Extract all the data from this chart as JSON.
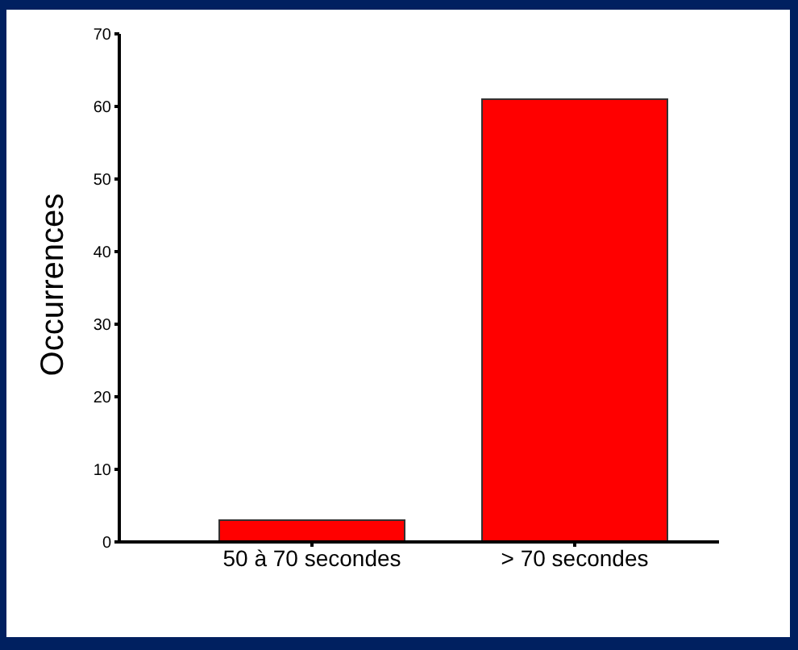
{
  "chart_data": {
    "type": "bar",
    "ylabel": "Occurrences",
    "categories": [
      "50 à 70 secondes",
      "> 70 secondes"
    ],
    "values": [
      3,
      61
    ],
    "color": "#ff0000",
    "ylim": [
      0,
      70
    ],
    "yticks": [
      0,
      10,
      20,
      30,
      40,
      50,
      60,
      70
    ],
    "grid": false
  }
}
